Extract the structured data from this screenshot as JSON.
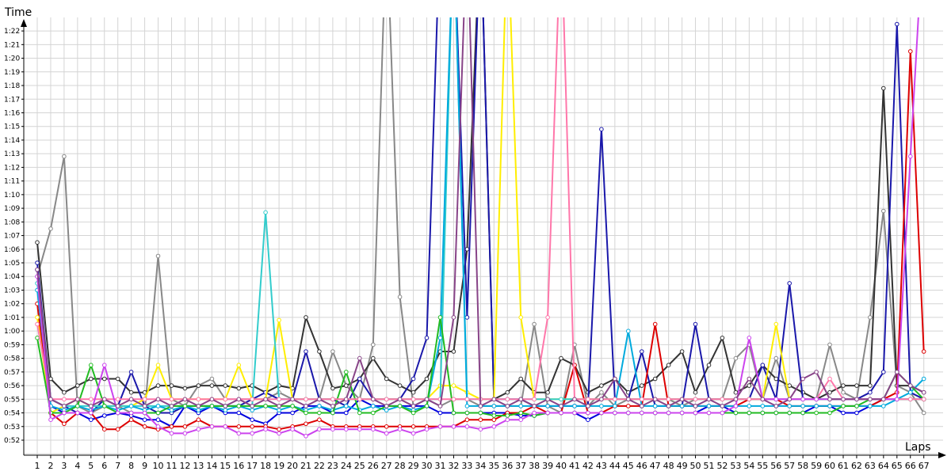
{
  "chart_data": {
    "type": "line",
    "ylabel": "Time",
    "xlabel": "Laps",
    "x": [
      1,
      2,
      3,
      4,
      5,
      6,
      7,
      8,
      9,
      10,
      11,
      12,
      13,
      14,
      15,
      16,
      17,
      18,
      19,
      20,
      21,
      22,
      23,
      24,
      25,
      26,
      27,
      28,
      29,
      30,
      31,
      32,
      33,
      34,
      35,
      36,
      37,
      38,
      39,
      40,
      41,
      42,
      43,
      44,
      45,
      46,
      47,
      48,
      49,
      50,
      51,
      52,
      53,
      54,
      55,
      56,
      57,
      58,
      59,
      60,
      61,
      62,
      63,
      64,
      65,
      66,
      67
    ],
    "y_tick_labels": [
      "0:52",
      "0:53",
      "0:54",
      "0:55",
      "0:56",
      "0:57",
      "0:58",
      "0:59",
      "1:00",
      "1:01",
      "1:02",
      "1:03",
      "1:04",
      "1:05",
      "1:06",
      "1:07",
      "1:08",
      "1:09",
      "1:10",
      "1:11",
      "1:12",
      "1:13",
      "1:14",
      "1:15",
      "1:16",
      "1:17",
      "1:18",
      "1:19",
      "1:20",
      "1:21",
      "1:22"
    ],
    "ylim_seconds": [
      51,
      84
    ],
    "grid": true,
    "series": [
      {
        "color": "#888888",
        "values": [
          64,
          67.5,
          72.8,
          54.5,
          54,
          54.5,
          54.5,
          54,
          54,
          65.5,
          55,
          54.5,
          56,
          56.5,
          55,
          55,
          55,
          55,
          55.5,
          55,
          55,
          55,
          58.5,
          56,
          55,
          59,
          90,
          62.5,
          54.5,
          55,
          54.5,
          55,
          55,
          54.5,
          54.5,
          54.5,
          54.5,
          60.5,
          54.5,
          54,
          59,
          54.5,
          55.5,
          54.5,
          55,
          55,
          55,
          55,
          54.5,
          55,
          55,
          55,
          58,
          59,
          55,
          58,
          55,
          55,
          55,
          59,
          55.5,
          55,
          61,
          68.8,
          56,
          55.5,
          54
        ]
      },
      {
        "color": "#333333",
        "values": [
          66.5,
          56.5,
          55.5,
          56,
          56.5,
          56.5,
          56.5,
          55.5,
          55.5,
          56,
          56,
          55.8,
          56,
          56,
          56,
          55.8,
          56,
          55.5,
          56,
          55.8,
          61,
          58.5,
          55.8,
          56,
          56.5,
          58,
          56.5,
          56,
          55.5,
          56.5,
          58.5,
          58.5,
          66,
          90,
          55,
          55.5,
          56.5,
          55.5,
          55.5,
          58,
          57.5,
          55.5,
          56,
          56.5,
          55.5,
          56,
          56.5,
          57.5,
          58.5,
          55.5,
          57.5,
          59.5,
          55.5,
          56,
          57.5,
          56.5,
          56,
          55.5,
          55,
          55.5,
          56,
          56,
          56,
          77.8,
          56,
          56,
          55.5
        ]
      },
      {
        "color": "#1a18aa",
        "values": [
          65,
          55,
          54.5,
          54,
          54,
          55,
          54.5,
          57,
          54.5,
          54,
          54,
          54.5,
          54.5,
          54.5,
          54.5,
          54.5,
          55,
          55.5,
          55,
          55,
          58.5,
          55,
          55,
          54.5,
          56.5,
          55,
          55,
          55,
          56.5,
          59.5,
          90,
          90,
          61,
          90,
          55,
          55,
          55,
          54.5,
          54.5,
          54.5,
          54.5,
          54.5,
          74.8,
          55,
          55,
          58.5,
          54.5,
          54.5,
          54.5,
          60.5,
          55,
          55,
          55,
          55,
          57.5,
          55,
          63.5,
          55,
          55,
          55,
          55,
          55,
          55.5,
          57,
          82.5,
          55.5,
          55
        ]
      },
      {
        "color": "#0000dd",
        "values": [
          64.5,
          54.5,
          54,
          54,
          53.5,
          53.8,
          54,
          53.8,
          53.5,
          53.5,
          53,
          54.5,
          54,
          54.5,
          54,
          54,
          53.5,
          53.2,
          54,
          54,
          54.5,
          54.5,
          54,
          54,
          55,
          54.5,
          54.5,
          54.5,
          54.5,
          54.5,
          54,
          54,
          54,
          54,
          54,
          54,
          53.8,
          53.8,
          54,
          54,
          54,
          53.5,
          54,
          54,
          54,
          54,
          54,
          54,
          54,
          54,
          54.5,
          54.5,
          54,
          54,
          54,
          54,
          54,
          54,
          54.5,
          54.5,
          54,
          54,
          54.5,
          55,
          55,
          55,
          55
        ]
      },
      {
        "color": "#dd0000",
        "values": [
          62,
          54,
          53.2,
          54,
          54,
          52.8,
          52.8,
          53.5,
          53,
          52.8,
          53,
          53,
          53.5,
          53,
          53,
          53,
          53,
          53,
          52.8,
          53,
          53.2,
          53.5,
          53,
          53,
          53,
          53,
          53,
          53,
          53,
          53,
          53,
          53,
          53.5,
          53.5,
          53.5,
          54,
          54,
          54.5,
          54,
          54,
          57.5,
          54,
          54,
          54.5,
          54.5,
          54.5,
          60.5,
          54.5,
          54.5,
          54.5,
          54.5,
          54.5,
          54.5,
          55,
          55,
          55,
          54.5,
          54.5,
          54.5,
          54.5,
          54.5,
          54.5,
          54.5,
          55,
          55.5,
          80.5,
          58.5
        ]
      },
      {
        "color": "#ffee00",
        "values": [
          61,
          54,
          54.5,
          55,
          54.5,
          54.5,
          54.5,
          54.5,
          55,
          57.5,
          55,
          55,
          55,
          55,
          55,
          57.5,
          55,
          55,
          60.8,
          55,
          55,
          55,
          55,
          55,
          55,
          55,
          55,
          55,
          55,
          55,
          56,
          56,
          55.5,
          55,
          55,
          90,
          61,
          55,
          55,
          55,
          55,
          55,
          55,
          55,
          55,
          55,
          55,
          55,
          55,
          55,
          55,
          55,
          55,
          55,
          55,
          60.5,
          55,
          55,
          55,
          55,
          55,
          55,
          55,
          55,
          55,
          55,
          55
        ]
      },
      {
        "color": "#33cccc",
        "values": [
          63.5,
          55,
          54.5,
          54.5,
          54.5,
          54.5,
          54.5,
          54.5,
          54.5,
          54.5,
          54.5,
          54.5,
          54.5,
          54.5,
          54.5,
          54.5,
          54.5,
          68.7,
          55,
          55,
          55,
          55,
          55,
          55,
          55,
          55,
          55,
          55,
          55,
          55,
          55,
          90,
          55,
          55,
          55,
          55,
          55,
          55,
          55,
          55,
          55,
          55,
          55,
          55,
          55,
          55,
          55,
          55,
          55,
          55,
          55,
          55,
          55,
          55,
          55,
          55,
          55,
          55,
          55,
          55,
          55,
          55,
          55,
          55,
          55,
          55,
          55
        ]
      },
      {
        "color": "#00aadd",
        "values": [
          63,
          54.5,
          54.2,
          54.5,
          54.2,
          54.5,
          54.2,
          54.5,
          54.2,
          54.5,
          54.2,
          54.5,
          54.2,
          54.5,
          54.2,
          54.5,
          54.2,
          54.5,
          54.2,
          54.5,
          54.2,
          54.5,
          54.2,
          54.5,
          54.2,
          54.5,
          54.2,
          54.5,
          54.2,
          54.5,
          59.5,
          90,
          54.5,
          54.5,
          54.5,
          54.5,
          54.5,
          54.5,
          54.5,
          54.5,
          54.5,
          54.5,
          54.5,
          54.5,
          60,
          54.5,
          54.5,
          54.5,
          54.5,
          54.5,
          54.5,
          54.5,
          54.5,
          54.5,
          54.5,
          54.5,
          54.5,
          54.5,
          54.5,
          54.5,
          54.5,
          54.5,
          54.5,
          54.5,
          55,
          55.5,
          56.5
        ]
      },
      {
        "color": "#22bb22",
        "values": [
          59.5,
          54,
          54,
          54.5,
          57.5,
          54.5,
          54,
          54,
          54,
          54,
          54.5,
          54.5,
          54.5,
          54.5,
          54.5,
          54.5,
          54.5,
          54.5,
          54.5,
          54.5,
          54,
          54,
          54,
          57,
          54,
          54,
          54.5,
          54.5,
          54,
          54.5,
          61,
          54,
          54,
          54,
          53.8,
          53.8,
          54,
          53.8,
          54,
          54,
          54,
          54,
          54,
          54,
          54,
          54,
          54,
          54,
          54,
          54,
          54,
          54,
          54,
          54,
          54,
          54,
          54,
          54,
          54,
          54,
          54.5,
          54.5,
          55,
          55,
          57,
          56,
          55
        ]
      },
      {
        "color": "#ff77aa",
        "values": [
          60.5,
          55,
          55,
          55,
          55,
          55,
          55,
          55,
          55,
          55,
          55,
          55,
          55,
          55,
          55,
          55,
          55,
          55,
          55,
          55,
          55,
          55,
          55,
          55,
          55,
          55,
          55,
          55,
          55,
          55,
          55,
          55,
          55,
          55,
          55,
          55,
          55,
          55,
          61,
          90,
          55,
          55,
          55,
          55,
          55,
          55,
          55,
          55,
          55,
          55,
          55,
          55,
          55,
          55,
          55,
          55,
          55,
          55,
          55,
          56.5,
          55,
          55,
          55,
          55,
          55,
          55,
          55
        ]
      },
      {
        "color": "#cc44ee",
        "values": [
          64,
          53.5,
          54,
          54,
          54,
          57.5,
          54,
          54,
          54,
          53,
          52.5,
          52.5,
          52.8,
          53,
          53,
          52.5,
          52.5,
          52.8,
          52.5,
          52.8,
          52.3,
          52.8,
          52.8,
          52.8,
          52.8,
          52.8,
          52.5,
          52.8,
          52.5,
          52.8,
          53,
          53,
          53,
          52.8,
          53,
          53.5,
          53.5,
          54,
          54,
          54,
          54,
          54,
          54,
          54,
          54,
          54,
          54,
          54,
          54,
          54,
          54,
          54,
          54.5,
          59.5,
          55,
          55,
          55,
          55,
          55,
          55,
          55,
          55,
          55,
          55,
          55,
          72.8,
          90
        ]
      },
      {
        "color": "#884488",
        "values": [
          64.5,
          55,
          54.5,
          55,
          54.5,
          55,
          54.5,
          55,
          54.5,
          55,
          54.5,
          55,
          54.5,
          55,
          54.5,
          55,
          54.5,
          55,
          54.5,
          55,
          54.5,
          55,
          54.5,
          55,
          58,
          55,
          54.5,
          55,
          54.5,
          55,
          54.5,
          61,
          90,
          54.5,
          55,
          54.5,
          55,
          54.5,
          55,
          54.5,
          55,
          54.5,
          55,
          56.5,
          55,
          54.5,
          55,
          54.5,
          55,
          54.5,
          55,
          54.5,
          55,
          56.5,
          55,
          54.5,
          55,
          56.5,
          57,
          55,
          55,
          55,
          55,
          55,
          57,
          56,
          55.5
        ]
      }
    ]
  }
}
